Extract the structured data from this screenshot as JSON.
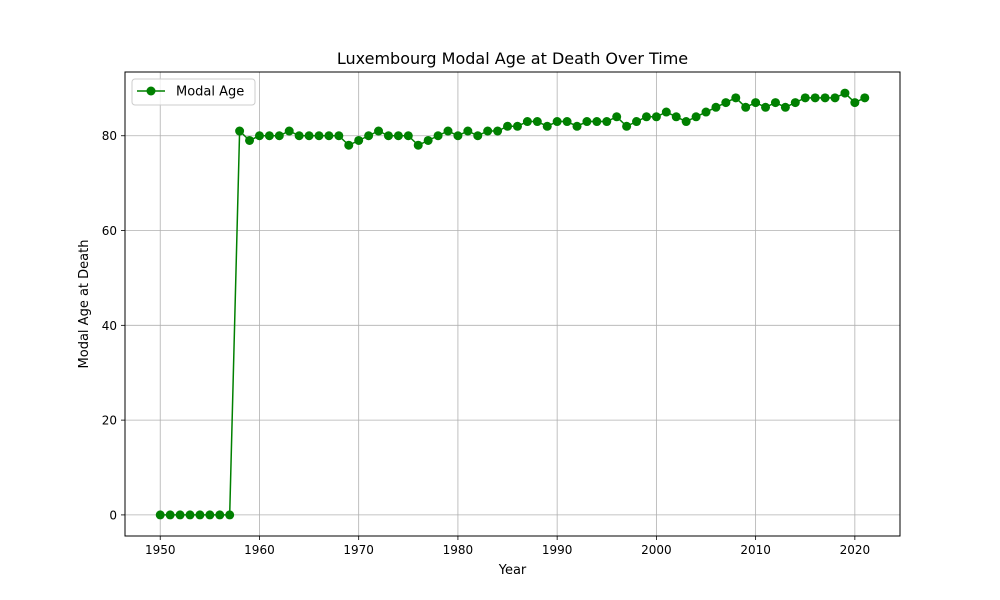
{
  "chart_data": {
    "type": "line",
    "title": "Luxembourg Modal Age at Death Over Time",
    "xlabel": "Year",
    "ylabel": "Modal Age at Death",
    "xlim": [
      1946.45,
      2024.55
    ],
    "ylim": [
      -4.45,
      93.45
    ],
    "xticks": [
      1950,
      1960,
      1970,
      1980,
      1990,
      2000,
      2010,
      2020
    ],
    "yticks": [
      0,
      20,
      40,
      60,
      80
    ],
    "grid": true,
    "legend_position": "top-left",
    "series": [
      {
        "name": "Modal Age",
        "color": "#008000",
        "marker": "circle",
        "x": [
          1950,
          1951,
          1952,
          1953,
          1954,
          1955,
          1956,
          1957,
          1958,
          1959,
          1960,
          1961,
          1962,
          1963,
          1964,
          1965,
          1966,
          1967,
          1968,
          1969,
          1970,
          1971,
          1972,
          1973,
          1974,
          1975,
          1976,
          1977,
          1978,
          1979,
          1980,
          1981,
          1982,
          1983,
          1984,
          1985,
          1986,
          1987,
          1988,
          1989,
          1990,
          1991,
          1992,
          1993,
          1994,
          1995,
          1996,
          1997,
          1998,
          1999,
          2000,
          2001,
          2002,
          2003,
          2004,
          2005,
          2006,
          2007,
          2008,
          2009,
          2010,
          2011,
          2012,
          2013,
          2014,
          2015,
          2016,
          2017,
          2018,
          2019,
          2020,
          2021
        ],
        "y": [
          0,
          0,
          0,
          0,
          0,
          0,
          0,
          0,
          81,
          79,
          80,
          80,
          80,
          81,
          80,
          80,
          80,
          80,
          80,
          78,
          79,
          80,
          81,
          80,
          80,
          80,
          78,
          79,
          80,
          81,
          80,
          81,
          80,
          81,
          81,
          82,
          82,
          83,
          83,
          82,
          83,
          83,
          82,
          83,
          83,
          83,
          84,
          82,
          83,
          84,
          84,
          85,
          84,
          83,
          84,
          85,
          86,
          87,
          88,
          86,
          87,
          86,
          87,
          86,
          87,
          88,
          88,
          88,
          88,
          89,
          87,
          88
        ]
      }
    ]
  }
}
